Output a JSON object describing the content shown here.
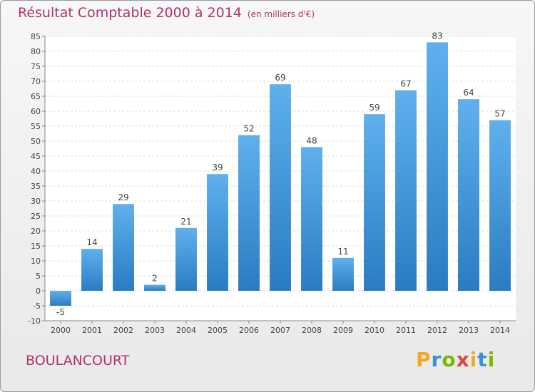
{
  "chart_data": {
    "type": "bar",
    "title": "Résultat Comptable 2000 à 2014",
    "subtitle": "(en milliers d'€)",
    "categories": [
      "2000",
      "2001",
      "2002",
      "2003",
      "2004",
      "2005",
      "2006",
      "2007",
      "2008",
      "2009",
      "2010",
      "2011",
      "2012",
      "2013",
      "2014"
    ],
    "values": [
      -5,
      14,
      29,
      2,
      21,
      39,
      52,
      69,
      48,
      11,
      59,
      67,
      83,
      64,
      57
    ],
    "ylim": [
      -10,
      85
    ],
    "yticks": [
      -10,
      -5,
      0,
      5,
      10,
      15,
      20,
      25,
      30,
      35,
      40,
      45,
      50,
      55,
      60,
      65,
      70,
      75,
      80,
      85
    ],
    "xlabel": "",
    "ylabel": "",
    "grid": true,
    "bar_color": "#3a8fd6"
  },
  "location": "BOULANCOURT",
  "brand": {
    "letters": [
      "P",
      "r",
      "o",
      "x",
      "i",
      "t",
      "i"
    ],
    "colors": [
      "#f5a623",
      "#3a8fd6",
      "#7ab800",
      "#e8433f",
      "#f5a623",
      "#3a8fd6",
      "#7ab800"
    ]
  }
}
